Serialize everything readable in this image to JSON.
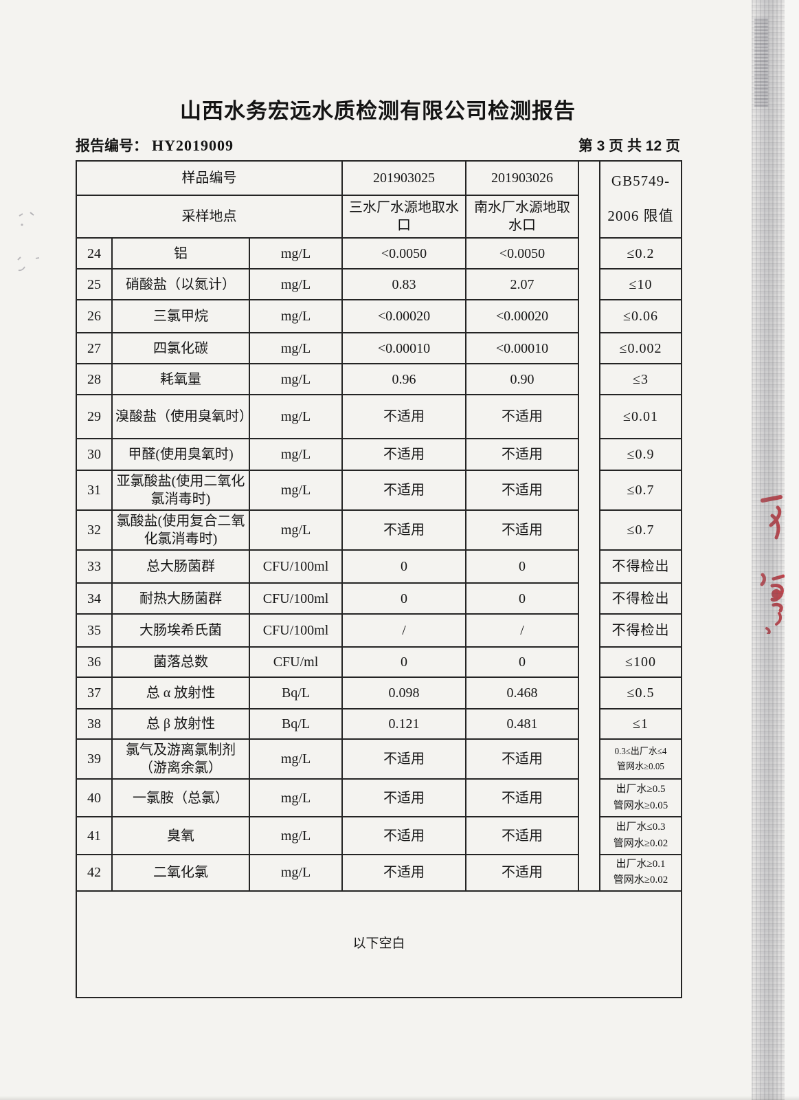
{
  "page": {
    "title": "山西水务宏远水质检测有限公司检测报告",
    "report_no_label": "报告编号：",
    "report_no": "HY2019009",
    "page_indicator": "第 3 页 共 12 页"
  },
  "table": {
    "sample_id_label": "样品编号",
    "sample_ids": [
      "201903025",
      "201903026"
    ],
    "location_label": "采样地点",
    "locations": [
      "三水厂水源地取水口",
      "南水厂水源地取水口"
    ],
    "limit_header": {
      "line1": "GB5749-",
      "line2": "2006 限值"
    },
    "rows": [
      {
        "no": "24",
        "name": "铝",
        "unit": "mg/L",
        "v1": "<0.0050",
        "v2": "<0.0050",
        "limit": "≤0.2"
      },
      {
        "no": "25",
        "name": "硝酸盐（以氮计）",
        "unit": "mg/L",
        "v1": "0.83",
        "v2": "2.07",
        "limit": "≤10"
      },
      {
        "no": "26",
        "name": "三氯甲烷",
        "unit": "mg/L",
        "v1": "<0.00020",
        "v2": "<0.00020",
        "limit": "≤0.06"
      },
      {
        "no": "27",
        "name": "四氯化碳",
        "unit": "mg/L",
        "v1": "<0.00010",
        "v2": "<0.00010",
        "limit": "≤0.002"
      },
      {
        "no": "28",
        "name": "耗氧量",
        "unit": "mg/L",
        "v1": "0.96",
        "v2": "0.90",
        "limit": "≤3"
      },
      {
        "no": "29",
        "name": "溴酸盐（使用臭氧时）",
        "unit": "mg/L",
        "v1": "不适用",
        "v2": "不适用",
        "limit": "≤0.01"
      },
      {
        "no": "30",
        "name": "甲醛(使用臭氧时)",
        "unit": "mg/L",
        "v1": "不适用",
        "v2": "不适用",
        "limit": "≤0.9"
      },
      {
        "no": "31",
        "name": "亚氯酸盐(使用二氧化氯消毒时)",
        "unit": "mg/L",
        "v1": "不适用",
        "v2": "不适用",
        "limit": "≤0.7"
      },
      {
        "no": "32",
        "name": "氯酸盐(使用复合二氧化氯消毒时)",
        "unit": "mg/L",
        "v1": "不适用",
        "v2": "不适用",
        "limit": "≤0.7"
      },
      {
        "no": "33",
        "name": "总大肠菌群",
        "unit": "CFU/100ml",
        "v1": "0",
        "v2": "0",
        "limit": "不得检出"
      },
      {
        "no": "34",
        "name": "耐热大肠菌群",
        "unit": "CFU/100ml",
        "v1": "0",
        "v2": "0",
        "limit": "不得检出"
      },
      {
        "no": "35",
        "name": "大肠埃希氏菌",
        "unit": "CFU/100ml",
        "v1": "/",
        "v2": "/",
        "limit": "不得检出"
      },
      {
        "no": "36",
        "name": "菌落总数",
        "unit": "CFU/ml",
        "v1": "0",
        "v2": "0",
        "limit": "≤100"
      },
      {
        "no": "37",
        "name": "总 α 放射性",
        "unit": "Bq/L",
        "v1": "0.098",
        "v2": "0.468",
        "limit": "≤0.5"
      },
      {
        "no": "38",
        "name": "总 β 放射性",
        "unit": "Bq/L",
        "v1": "0.121",
        "v2": "0.481",
        "limit": "≤1"
      },
      {
        "no": "39",
        "name": "氯气及游离氯制剂（游离余氯）",
        "unit": "mg/L",
        "v1": "不适用",
        "v2": "不适用",
        "limit": "0.3≤出厂水≤4\n管网水≥0.05"
      },
      {
        "no": "40",
        "name": "一氯胺（总氯）",
        "unit": "mg/L",
        "v1": "不适用",
        "v2": "不适用",
        "limit": "出厂水≥0.5\n管网水≥0.05"
      },
      {
        "no": "41",
        "name": "臭氧",
        "unit": "mg/L",
        "v1": "不适用",
        "v2": "不适用",
        "limit": "出厂水≤0.3\n管网水≥0.02"
      },
      {
        "no": "42",
        "name": "二氧化氯",
        "unit": "mg/L",
        "v1": "不适用",
        "v2": "不适用",
        "limit": "出厂水≥0.1\n管网水≥0.02"
      }
    ],
    "footer_note": "以下空白"
  },
  "colors": {
    "stamp_red": "#c4232b",
    "ink": "#1b1b1b"
  }
}
